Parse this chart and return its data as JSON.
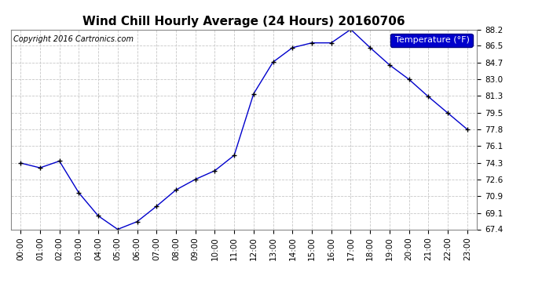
{
  "title": "Wind Chill Hourly Average (24 Hours) 20160706",
  "copyright_text": "Copyright 2016 Cartronics.com",
  "legend_label": "Temperature (°F)",
  "hours": [
    0,
    1,
    2,
    3,
    4,
    5,
    6,
    7,
    8,
    9,
    10,
    11,
    12,
    13,
    14,
    15,
    16,
    17,
    18,
    19,
    20,
    21,
    22,
    23
  ],
  "hour_labels": [
    "00:00",
    "01:00",
    "02:00",
    "03:00",
    "04:00",
    "05:00",
    "06:00",
    "07:00",
    "08:00",
    "09:00",
    "10:00",
    "11:00",
    "12:00",
    "13:00",
    "14:00",
    "15:00",
    "16:00",
    "17:00",
    "18:00",
    "19:00",
    "20:00",
    "21:00",
    "22:00",
    "23:00"
  ],
  "temps": [
    74.3,
    73.8,
    74.5,
    71.2,
    68.8,
    67.4,
    68.2,
    69.8,
    71.5,
    72.6,
    73.5,
    75.1,
    81.5,
    84.8,
    86.3,
    86.8,
    86.8,
    88.2,
    86.3,
    84.5,
    83.0,
    81.2,
    79.5,
    77.8
  ],
  "line_color": "#0000cc",
  "marker": "+",
  "marker_color": "#000000",
  "background_color": "#ffffff",
  "grid_color": "#c8c8c8",
  "ylim_min": 67.4,
  "ylim_max": 88.2,
  "yticks": [
    67.4,
    69.1,
    70.9,
    72.6,
    74.3,
    76.1,
    77.8,
    79.5,
    81.3,
    83.0,
    84.7,
    86.5,
    88.2
  ],
  "title_fontsize": 11,
  "copyright_fontsize": 7,
  "tick_fontsize": 7.5,
  "legend_fontsize": 8
}
